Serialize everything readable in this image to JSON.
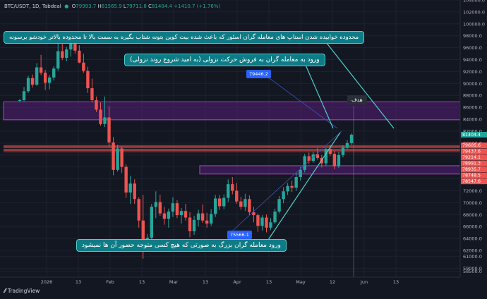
{
  "header": {
    "symbol": "BTC/USDT, 1D, Tabdeal",
    "o_label": "O",
    "o_value": "79993.7",
    "h_label": "H",
    "h_value": "81565.9",
    "l_label": "L",
    "l_value": "79711.8",
    "c_label": "C",
    "c_value": "81404.4",
    "change": "+1410.7 (+1.76%)"
  },
  "callouts": {
    "top": "محدوده خوابیده شدن استاپ های معامله گران اسئور که باعث شده بیت کوین بتونه شتاب بگیره به سمت بالا تا محدوده بالاتر خودشو برسونه",
    "middle": "ورود به معامله گران به فروش حرکت نزولی (به امید شروع روند نزولی)",
    "bottom": "ورود معامله گران بزرگ به صورتی که هیچ کسی متوجه حضور آن ها نمیشود",
    "goal": "هدف"
  },
  "tags": {
    "upper_entry": "79446.2",
    "lower_entry": "75566.1"
  },
  "branding": {
    "logo_text": "TradingView"
  },
  "chart_data": {
    "type": "candlestick",
    "title": "BTC/USDT, 1D, Tabdeal",
    "ylim": [
      57500,
      104000
    ],
    "x_ticks": [
      "2026",
      "13",
      "Feb",
      "13",
      "Mar",
      "13",
      "Apr",
      "13",
      "May",
      "12",
      "Jun",
      "13"
    ],
    "y_ticks": [
      "104000.0",
      "102000.0",
      "100000.0",
      "98000.0",
      "96000.0",
      "94000.0",
      "92000.0",
      "90000.0",
      "88000.0",
      "86000.0",
      "84000.0",
      "82000.0",
      "80000.0",
      "78000.0",
      "76000.0",
      "74000.0",
      "72000.0",
      "70000.0",
      "68000.0",
      "66000.0",
      "64000.0",
      "62000.0",
      "61000.0",
      "59000.0",
      "58500.0"
    ],
    "price_labels": [
      {
        "value": "81404.4",
        "color": "#26a69a"
      },
      {
        "value": "79605.6",
        "color": "#ef5350"
      },
      {
        "value": "79437.6",
        "color": "#ef5350"
      },
      {
        "value": "79214.1",
        "color": "#ef5350"
      },
      {
        "value": "78991.3",
        "color": "#ef5350"
      },
      {
        "value": "78935.7",
        "color": "#ef5350"
      },
      {
        "value": "78748.5",
        "color": "#ef5350"
      },
      {
        "value": "78547.6",
        "color": "#ef5350"
      }
    ],
    "zones": [
      {
        "name": "upper-zone",
        "from": 83900,
        "to": 86900
      },
      {
        "name": "entry-zone",
        "from": 74800,
        "to": 76200
      }
    ],
    "resistance_lines": [
      79605.6,
      79437.6,
      79214.1,
      78991.3,
      78935.7,
      78748.5,
      78547.6
    ],
    "candles": [
      [
        87200,
        87400,
        86900,
        87200
      ],
      [
        87200,
        89400,
        87000,
        88700
      ],
      [
        88700,
        91300,
        88400,
        90900
      ],
      [
        90900,
        91500,
        89300,
        89800
      ],
      [
        89800,
        93400,
        89600,
        92700
      ],
      [
        92700,
        94800,
        91400,
        91800
      ],
      [
        91800,
        92300,
        88900,
        90100
      ],
      [
        90100,
        91400,
        89000,
        91000
      ],
      [
        91000,
        92900,
        90500,
        92500
      ],
      [
        92500,
        96800,
        92100,
        95400
      ],
      [
        95400,
        97500,
        93900,
        94300
      ],
      [
        94300,
        96100,
        93700,
        95700
      ],
      [
        95700,
        97300,
        94500,
        96700
      ],
      [
        96700,
        97000,
        95000,
        95500
      ],
      [
        95500,
        96400,
        93400,
        93500
      ],
      [
        93500,
        95000,
        91800,
        92100
      ],
      [
        92100,
        92800,
        88400,
        89200
      ],
      [
        89200,
        90800,
        86800,
        87200
      ],
      [
        87200,
        87800,
        85200,
        85600
      ],
      [
        85600,
        86800,
        82900,
        83200
      ],
      [
        83200,
        87800,
        82700,
        84300
      ],
      [
        84300,
        86200,
        79400,
        80100
      ],
      [
        80100,
        81000,
        74600,
        75500
      ],
      [
        75500,
        79700,
        75200,
        79100
      ],
      [
        79100,
        79400,
        75000,
        76000
      ],
      [
        76000,
        76400,
        70800,
        71700
      ],
      [
        71700,
        74500,
        69800,
        73200
      ],
      [
        73200,
        73900,
        69800,
        70600
      ],
      [
        70600,
        70900,
        65800,
        67000
      ],
      [
        67000,
        71300,
        60600,
        63000
      ],
      [
        63000,
        64700,
        62200,
        64100
      ],
      [
        64100,
        69800,
        63600,
        69300
      ],
      [
        69300,
        71900,
        67400,
        70100
      ],
      [
        70100,
        71300,
        67800,
        68200
      ],
      [
        68200,
        69300,
        66300,
        67300
      ],
      [
        67300,
        69000,
        65800,
        68500
      ],
      [
        68500,
        70900,
        67600,
        69900
      ],
      [
        69900,
        70400,
        67400,
        67900
      ],
      [
        67900,
        69100,
        66500,
        68600
      ],
      [
        68600,
        69800,
        67000,
        67500
      ],
      [
        67500,
        68400,
        64200,
        65200
      ],
      [
        65200,
        67800,
        64600,
        67100
      ],
      [
        67100,
        68800,
        66000,
        68200
      ],
      [
        68200,
        69700,
        66600,
        67000
      ],
      [
        67000,
        68300,
        65800,
        66500
      ],
      [
        66500,
        68900,
        66100,
        68100
      ],
      [
        68100,
        71300,
        67600,
        70700
      ],
      [
        70700,
        71300,
        68800,
        69400
      ],
      [
        69400,
        71400,
        68900,
        70800
      ],
      [
        70800,
        73900,
        70100,
        73100
      ],
      [
        73100,
        74300,
        71400,
        72000
      ],
      [
        72000,
        73300,
        69800,
        70200
      ],
      [
        70200,
        71000,
        68800,
        69300
      ],
      [
        69300,
        71500,
        68600,
        70600
      ],
      [
        70600,
        71200,
        67900,
        68400
      ],
      [
        68400,
        69300,
        66700,
        67900
      ],
      [
        67900,
        68200,
        65100,
        66100
      ],
      [
        66100,
        67900,
        65300,
        67500
      ],
      [
        67500,
        68000,
        65000,
        65800
      ],
      [
        65800,
        67400,
        65400,
        66700
      ],
      [
        66700,
        69000,
        66400,
        68500
      ],
      [
        68500,
        71100,
        68200,
        70600
      ],
      [
        70600,
        72600,
        69900,
        71900
      ],
      [
        71900,
        73300,
        71300,
        72800
      ],
      [
        72800,
        73700,
        71800,
        72500
      ],
      [
        72500,
        75000,
        72000,
        74300
      ],
      [
        74300,
        76000,
        73700,
        75500
      ],
      [
        75500,
        78200,
        75100,
        77800
      ],
      [
        77800,
        78400,
        76500,
        77000
      ],
      [
        77000,
        78600,
        76700,
        78100
      ],
      [
        78100,
        79200,
        77200,
        77500
      ],
      [
        77500,
        78000,
        75900,
        76600
      ],
      [
        76600,
        79200,
        76100,
        78900
      ],
      [
        78900,
        79700,
        77800,
        78200
      ],
      [
        78200,
        78700,
        75600,
        76100
      ],
      [
        76100,
        78500,
        75800,
        78000
      ],
      [
        78000,
        79600,
        77600,
        79300
      ],
      [
        79300,
        80500,
        78900,
        80000
      ],
      [
        80000,
        81600,
        79700,
        81400
      ]
    ]
  }
}
